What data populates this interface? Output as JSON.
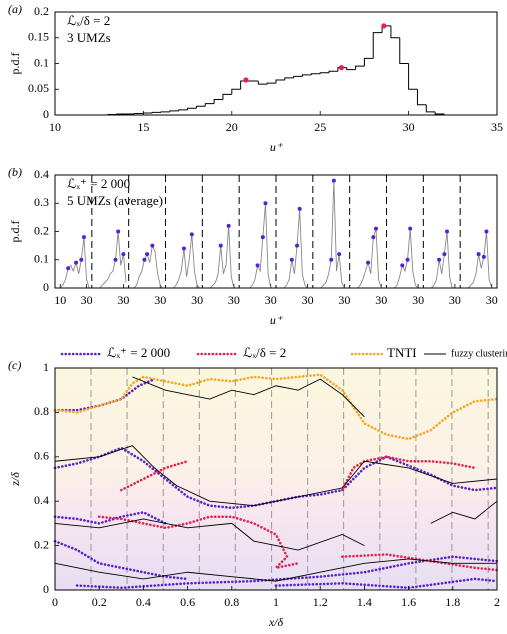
{
  "chart_data": [
    {
      "type": "histogram",
      "panel_label": "(a)",
      "y_label": "p.d.f",
      "x_label": "u⁺",
      "annotations": [
        "ℒₓ/δ = 2",
        "3 UMZs"
      ],
      "xlim": [
        10,
        35
      ],
      "xticks": [
        10,
        15,
        20,
        25,
        30,
        35
      ],
      "ylim": [
        0,
        0.2
      ],
      "yticks": [
        0,
        0.05,
        0.1,
        0.15,
        0.2
      ],
      "color": "#000000",
      "bins": [
        13,
        13.5,
        14,
        14.5,
        15,
        15.5,
        16,
        16.5,
        17,
        17.5,
        18,
        18.5,
        19,
        19.5,
        20,
        20.5,
        21,
        21.5,
        22,
        22.5,
        23,
        23.5,
        24,
        24.5,
        25,
        25.5,
        26,
        26.5,
        27,
        27.5,
        28,
        28.5,
        29,
        29.5,
        30,
        30.5,
        31,
        31.5,
        32
      ],
      "values": [
        0.001,
        0.002,
        0.002,
        0.003,
        0.004,
        0.005,
        0.006,
        0.008,
        0.01,
        0.013,
        0.017,
        0.022,
        0.03,
        0.04,
        0.05,
        0.066,
        0.066,
        0.06,
        0.062,
        0.068,
        0.072,
        0.075,
        0.078,
        0.08,
        0.082,
        0.085,
        0.092,
        0.088,
        0.095,
        0.11,
        0.16,
        0.173,
        0.15,
        0.1,
        0.05,
        0.02,
        0.006,
        0.002
      ],
      "markers": {
        "color": "#e3244f",
        "x": [
          20.8,
          26.2,
          28.6
        ],
        "y": [
          0.068,
          0.092,
          0.173
        ]
      }
    },
    {
      "type": "multiples",
      "panel_label": "(b)",
      "y_label": "p.d.f",
      "x_label": "u⁺",
      "annotations": [
        "ℒₓ⁺ = 2 000",
        "5 UMZs (average)"
      ],
      "ylim": [
        0,
        0.4
      ],
      "yticks": [
        0,
        0.1,
        0.2,
        0.3,
        0.4
      ],
      "segment_xlim": [
        6,
        34
      ],
      "color": "#888888",
      "marker_color": "#5b1fd0",
      "x": [
        10,
        12,
        14,
        16,
        18,
        20,
        22,
        24,
        26,
        28,
        30,
        32
      ],
      "segments": [
        {
          "xticks": [
            10,
            30
          ],
          "values": [
            0,
            0.01,
            0.03,
            0.07,
            0.08,
            0.06,
            0.09,
            0.05,
            0.1,
            0.18,
            0.03,
            0
          ],
          "peaks_x": [
            16,
            22,
            26,
            28
          ],
          "peaks_y": [
            0.07,
            0.09,
            0.1,
            0.18
          ]
        },
        {
          "xticks": [
            30
          ],
          "values": [
            0,
            0,
            0.01,
            0.02,
            0.03,
            0.05,
            0.06,
            0.1,
            0.2,
            0.08,
            0.12,
            0.02
          ],
          "peaks_x": [
            24,
            26,
            30
          ],
          "peaks_y": [
            0.1,
            0.2,
            0.12
          ]
        },
        {
          "xticks": [
            30
          ],
          "values": [
            0,
            0.01,
            0.04,
            0.06,
            0.1,
            0.12,
            0.09,
            0.15,
            0.13,
            0.05,
            0.01,
            0
          ],
          "peaks_x": [
            18,
            20,
            24
          ],
          "peaks_y": [
            0.1,
            0.12,
            0.15
          ]
        },
        {
          "xticks": [
            30
          ],
          "values": [
            0,
            0,
            0.01,
            0.03,
            0.06,
            0.14,
            0.04,
            0.1,
            0.19,
            0.06,
            0.01,
            0
          ],
          "peaks_x": [
            20,
            26
          ],
          "peaks_y": [
            0.14,
            0.19
          ]
        },
        {
          "xticks": [
            30
          ],
          "values": [
            0,
            0,
            0.01,
            0.02,
            0.05,
            0.15,
            0.05,
            0.08,
            0.22,
            0.04,
            0,
            0
          ],
          "peaks_x": [
            20,
            26
          ],
          "peaks_y": [
            0.15,
            0.22
          ]
        },
        {
          "xticks": [
            30
          ],
          "values": [
            0,
            0,
            0,
            0.01,
            0.03,
            0.08,
            0.06,
            0.18,
            0.3,
            0.05,
            0,
            0
          ],
          "peaks_x": [
            20,
            24,
            26
          ],
          "peaks_y": [
            0.08,
            0.18,
            0.3
          ]
        },
        {
          "xticks": [
            30
          ],
          "values": [
            0,
            0,
            0.01,
            0.03,
            0.1,
            0.05,
            0.15,
            0.28,
            0.05,
            0.01,
            0,
            0
          ],
          "peaks_x": [
            18,
            22,
            24
          ],
          "peaks_y": [
            0.1,
            0.15,
            0.28
          ]
        },
        {
          "xticks": [
            30
          ],
          "values": [
            0,
            0,
            0.01,
            0.02,
            0.05,
            0.1,
            0.38,
            0.06,
            0.12,
            0.02,
            0,
            0
          ],
          "peaks_x": [
            20,
            22,
            26
          ],
          "peaks_y": [
            0.1,
            0.38,
            0.12
          ]
        },
        {
          "xticks": [
            30
          ],
          "values": [
            0,
            0,
            0.01,
            0.03,
            0.06,
            0.09,
            0.05,
            0.18,
            0.21,
            0.03,
            0,
            0
          ],
          "peaks_x": [
            20,
            24,
            26
          ],
          "peaks_y": [
            0.09,
            0.18,
            0.21
          ]
        },
        {
          "xticks": [
            30
          ],
          "values": [
            0,
            0,
            0.01,
            0.04,
            0.08,
            0.06,
            0.1,
            0.21,
            0.06,
            0.01,
            0,
            0
          ],
          "peaks_x": [
            18,
            22,
            24
          ],
          "peaks_y": [
            0.08,
            0.1,
            0.21
          ]
        },
        {
          "xticks": [
            30
          ],
          "values": [
            0,
            0,
            0.01,
            0.03,
            0.1,
            0.05,
            0.12,
            0.2,
            0.04,
            0,
            0,
            0
          ],
          "peaks_x": [
            18,
            22,
            24
          ],
          "peaks_y": [
            0.1,
            0.12,
            0.2
          ]
        },
        {
          "xticks": [
            30
          ],
          "values": [
            0,
            0,
            0.01,
            0.02,
            0.05,
            0.12,
            0.07,
            0.11,
            0.2,
            0.03,
            0,
            0
          ],
          "peaks_x": [
            20,
            24,
            26
          ],
          "peaks_y": [
            0.12,
            0.11,
            0.2
          ]
        }
      ]
    },
    {
      "type": "contour",
      "panel_label": "(c)",
      "y_label": "z/δ",
      "x_label": "x/δ",
      "xlim": [
        0,
        2
      ],
      "xticks": [
        0,
        0.2,
        0.4,
        0.6,
        0.8,
        1,
        1.2,
        1.4,
        1.6,
        1.8,
        2
      ],
      "ylim": [
        0,
        1
      ],
      "yticks": [
        0,
        0.2,
        0.4,
        0.6,
        0.8,
        1
      ],
      "dividers": [
        0.163,
        0.326,
        0.49,
        0.653,
        0.816,
        0.98,
        1.143,
        1.306,
        1.47,
        1.633,
        1.796,
        1.96
      ],
      "series": [
        {
          "name": "ℒₓ⁺ = 2 000",
          "color": "#5b1fd0",
          "style": "dotted",
          "x": [
            0,
            0.1,
            0.2,
            0.3,
            0.38,
            0.45,
            null,
            0,
            0.1,
            0.2,
            0.3,
            0.4,
            0.5,
            0.6,
            0.7,
            0.8,
            0.9,
            1.0,
            1.1,
            1.2,
            1.3,
            1.4,
            1.5,
            1.6,
            1.7,
            1.8,
            1.9,
            2.0,
            null,
            0,
            0.1,
            0.2,
            0.3,
            0.4,
            0.5,
            null,
            0,
            0.1,
            0.2,
            0.3,
            0.4,
            0.5,
            0.6,
            null,
            0.1,
            0.3,
            0.6,
            0.9,
            1.2,
            1.4,
            1.6,
            1.8,
            2.0,
            null,
            1.0,
            1.3,
            1.6,
            1.9,
            2.0
          ],
          "y": [
            0.81,
            0.81,
            0.83,
            0.86,
            0.92,
            0.95,
            null,
            0.55,
            0.57,
            0.6,
            0.64,
            0.58,
            0.5,
            0.42,
            0.38,
            0.37,
            0.38,
            0.4,
            0.42,
            0.43,
            0.45,
            0.55,
            0.6,
            0.56,
            0.52,
            0.47,
            0.45,
            0.46,
            null,
            0.33,
            0.32,
            0.3,
            0.33,
            0.35,
            0.3,
            null,
            0.22,
            0.18,
            0.12,
            0.1,
            0.08,
            0.06,
            0.05,
            null,
            0.02,
            0.01,
            0.03,
            0.04,
            0.06,
            0.08,
            0.12,
            0.15,
            0.13,
            null,
            0.02,
            0.03,
            0.01,
            0.05,
            0.04
          ]
        },
        {
          "name": "ℒₓ/δ = 2",
          "color": "#e3244f",
          "style": "dotted",
          "x": [
            0.2,
            0.3,
            0.4,
            0.5,
            0.6,
            0.7,
            0.8,
            0.9,
            1.0,
            1.05,
            1.0,
            1.1,
            null,
            1.3,
            1.35,
            1.4,
            1.5,
            1.6,
            1.7,
            1.8,
            1.9,
            null,
            1.3,
            1.5,
            1.7,
            1.9,
            2.0,
            null,
            0.3,
            0.4,
            0.5,
            0.6
          ],
          "y": [
            0.33,
            0.32,
            0.3,
            0.28,
            0.3,
            0.33,
            0.33,
            0.3,
            0.25,
            0.15,
            0.1,
            0.12,
            null,
            0.45,
            0.55,
            0.58,
            0.6,
            0.58,
            0.58,
            0.57,
            0.55,
            null,
            0.15,
            0.16,
            0.13,
            0.1,
            0.09,
            null,
            0.45,
            0.5,
            0.55,
            0.58
          ]
        },
        {
          "name": "TNTI",
          "color": "#f5a623",
          "style": "dotted",
          "x": [
            0,
            0.1,
            0.2,
            0.3,
            0.35,
            0.4,
            0.5,
            0.6,
            0.7,
            0.8,
            0.9,
            1.0,
            1.1,
            1.2,
            1.3,
            1.4,
            1.5,
            1.6,
            1.7,
            1.8,
            1.9,
            2.0
          ],
          "y": [
            0.81,
            0.8,
            0.83,
            0.86,
            0.93,
            0.96,
            0.94,
            0.92,
            0.95,
            0.94,
            0.96,
            0.95,
            0.96,
            0.97,
            0.9,
            0.75,
            0.7,
            0.68,
            0.72,
            0.8,
            0.85,
            0.86
          ]
        },
        {
          "name": "fuzzy clustering hybrid",
          "color": "#000000",
          "style": "solid",
          "x": [
            0.35,
            0.5,
            0.6,
            0.7,
            0.8,
            0.9,
            1.0,
            1.1,
            1.2,
            1.3,
            1.4,
            null,
            0,
            0.2,
            0.35,
            0.45,
            0.55,
            0.7,
            0.9,
            1.1,
            1.3,
            1.4,
            1.6,
            1.8,
            2.0,
            null,
            0,
            0.2,
            0.4,
            0.6,
            0.8,
            0.9,
            1.0,
            1.1,
            1.3,
            1.4,
            null,
            0,
            0.2,
            0.4,
            0.6,
            0.8,
            1.0,
            1.2,
            1.4,
            1.6,
            1.8,
            2.0,
            null,
            1.7,
            1.8,
            1.9,
            2.0
          ],
          "y": [
            0.96,
            0.9,
            0.88,
            0.86,
            0.9,
            0.88,
            0.92,
            0.9,
            0.95,
            0.88,
            0.78,
            null,
            0.58,
            0.6,
            0.65,
            0.55,
            0.47,
            0.4,
            0.38,
            0.42,
            0.46,
            0.58,
            0.55,
            0.48,
            0.5,
            null,
            0.3,
            0.28,
            0.32,
            0.28,
            0.3,
            0.22,
            0.2,
            0.18,
            0.25,
            0.2,
            null,
            0.12,
            0.08,
            0.05,
            0.08,
            0.06,
            0.04,
            0.08,
            0.12,
            0.14,
            0.12,
            0.12,
            null,
            0.3,
            0.35,
            0.32,
            0.4
          ]
        }
      ]
    }
  ]
}
